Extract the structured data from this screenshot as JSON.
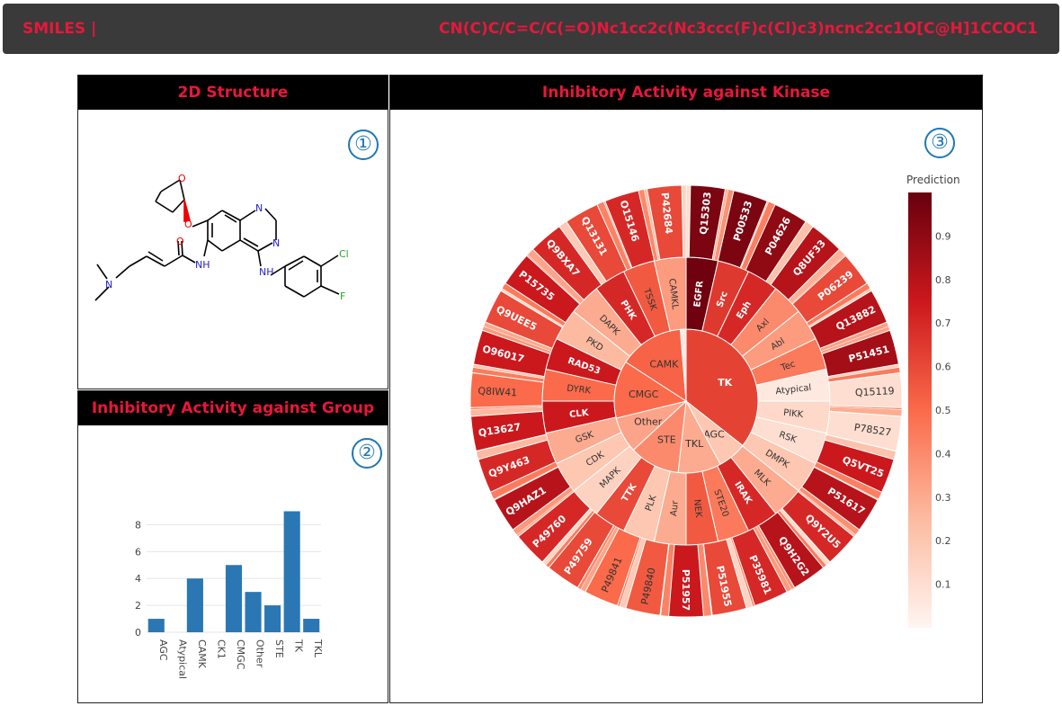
{
  "header": {
    "label": "SMILES |",
    "smiles": "CN(C)C/C=C/C(=O)Nc1cc2c(Nc3ccc(F)c(Cl)c3)ncnc2cc1O[C@H]1CCOC1"
  },
  "panels": {
    "structure": {
      "title": "2D Structure",
      "badge": "①"
    },
    "group": {
      "title": "Inhibitory Activity against Group",
      "badge": "②"
    },
    "kinase": {
      "title": "Inhibitory Activity against Kinase",
      "badge": "③"
    }
  },
  "molecule": {
    "atoms": {
      "O1": "O",
      "O2": "O",
      "O3": "O",
      "N1": "N",
      "N2": "N",
      "N3": "NH",
      "N4": "N",
      "N5": "NH",
      "Cl": "Cl",
      "F": "F"
    }
  },
  "colors": {
    "bar": "#2a77b4",
    "accent": "#e8173a",
    "scale": [
      "#fff5f0",
      "#fcbba1",
      "#fb6a4a",
      "#cb181d",
      "#67000d"
    ]
  },
  "chart_data": [
    {
      "type": "bar",
      "categories": [
        "AGC",
        "Atypical",
        "CAMK",
        "CK1",
        "CMGC",
        "Other",
        "STE",
        "TK",
        "TKL"
      ],
      "values": [
        1,
        0,
        4,
        0,
        5,
        3,
        2,
        9,
        1
      ],
      "ylim": [
        0,
        9.5
      ],
      "yticks": [
        0,
        2,
        4,
        6,
        8
      ],
      "grid": true
    },
    {
      "type": "sunburst",
      "colorbar": {
        "title": "Prediction",
        "ticks": [
          "0.1",
          "0.2",
          "0.3",
          "0.4",
          "0.5",
          "0.6",
          "0.7",
          "0.8",
          "0.9"
        ],
        "range": [
          0,
          1
        ]
      },
      "inner": [
        {
          "label": "TK",
          "value": 0.62
        },
        {
          "label": "AGC",
          "value": 0.2
        },
        {
          "label": "TKL",
          "value": 0.3
        },
        {
          "label": "STE",
          "value": 0.4
        },
        {
          "label": "Other",
          "value": 0.32
        },
        {
          "label": "CMGC",
          "value": 0.5
        },
        {
          "label": "CAMK",
          "value": 0.52
        },
        {
          "label": "Atypical",
          "value": 0.05
        }
      ],
      "middle": [
        {
          "label": "EGFR",
          "value": 0.98
        },
        {
          "label": "Src",
          "value": 0.65
        },
        {
          "label": "Eph",
          "value": 0.7
        },
        {
          "label": "Axl",
          "value": 0.4
        },
        {
          "label": "Abl",
          "value": 0.35
        },
        {
          "label": "Tec",
          "value": 0.45
        },
        {
          "label": "Atypical",
          "value": 0.05
        },
        {
          "label": "PIKK",
          "value": 0.12
        },
        {
          "label": "RSK",
          "value": 0.1
        },
        {
          "label": "DMPK",
          "value": 0.2
        },
        {
          "label": "MLK",
          "value": 0.3
        },
        {
          "label": "IRAK",
          "value": 0.7
        },
        {
          "label": "STE20",
          "value": 0.45
        },
        {
          "label": "NEK",
          "value": 0.55
        },
        {
          "label": "Aur",
          "value": 0.3
        },
        {
          "label": "PLK",
          "value": 0.2
        },
        {
          "label": "TTK",
          "value": 0.6
        },
        {
          "label": "MAPK",
          "value": 0.15
        },
        {
          "label": "CDK",
          "value": 0.2
        },
        {
          "label": "GSK",
          "value": 0.3
        },
        {
          "label": "CLK",
          "value": 0.75
        },
        {
          "label": "DYRK",
          "value": 0.5
        },
        {
          "label": "RAD53",
          "value": 0.75
        },
        {
          "label": "PKD",
          "value": 0.25
        },
        {
          "label": "DAPK",
          "value": 0.3
        },
        {
          "label": "PHK",
          "value": 0.7
        },
        {
          "label": "TSSK",
          "value": 0.55
        },
        {
          "label": "CAMKL",
          "value": 0.35
        }
      ],
      "outer": [
        {
          "label": "Q15303",
          "value": 0.95
        },
        {
          "label": "P00533",
          "value": 0.95
        },
        {
          "label": "P04626",
          "value": 0.9
        },
        {
          "label": "Q8UF33",
          "value": 0.8
        },
        {
          "label": "P06239",
          "value": 0.6
        },
        {
          "label": "Q13882",
          "value": 0.8
        },
        {
          "label": "P51451",
          "value": 0.85
        },
        {
          "label": "Q15119",
          "value": 0.1
        },
        {
          "label": "P78527",
          "value": 0.1
        },
        {
          "label": "Q5VT25",
          "value": 0.75
        },
        {
          "label": "P51617",
          "value": 0.8
        },
        {
          "label": "Q9Y2U5",
          "value": 0.7
        },
        {
          "label": "Q9H2G2",
          "value": 0.8
        },
        {
          "label": "P35981",
          "value": 0.7
        },
        {
          "label": "P51955",
          "value": 0.6
        },
        {
          "label": "P51957",
          "value": 0.75
        },
        {
          "label": "P49840",
          "value": 0.55
        },
        {
          "label": "P49841",
          "value": 0.5
        },
        {
          "label": "P49759",
          "value": 0.6
        },
        {
          "label": "P49760",
          "value": 0.7
        },
        {
          "label": "Q9HAZ1",
          "value": 0.8
        },
        {
          "label": "Q9Y463",
          "value": 0.7
        },
        {
          "label": "Q13627",
          "value": 0.75
        },
        {
          "label": "Q8IW41",
          "value": 0.5
        },
        {
          "label": "O96017",
          "value": 0.75
        },
        {
          "label": "Q9UEE5",
          "value": 0.6
        },
        {
          "label": "P15735",
          "value": 0.75
        },
        {
          "label": "Q9BXA7",
          "value": 0.7
        },
        {
          "label": "Q13131",
          "value": 0.6
        },
        {
          "label": "O15146",
          "value": 0.7
        },
        {
          "label": "P42684",
          "value": 0.6
        }
      ]
    }
  ]
}
